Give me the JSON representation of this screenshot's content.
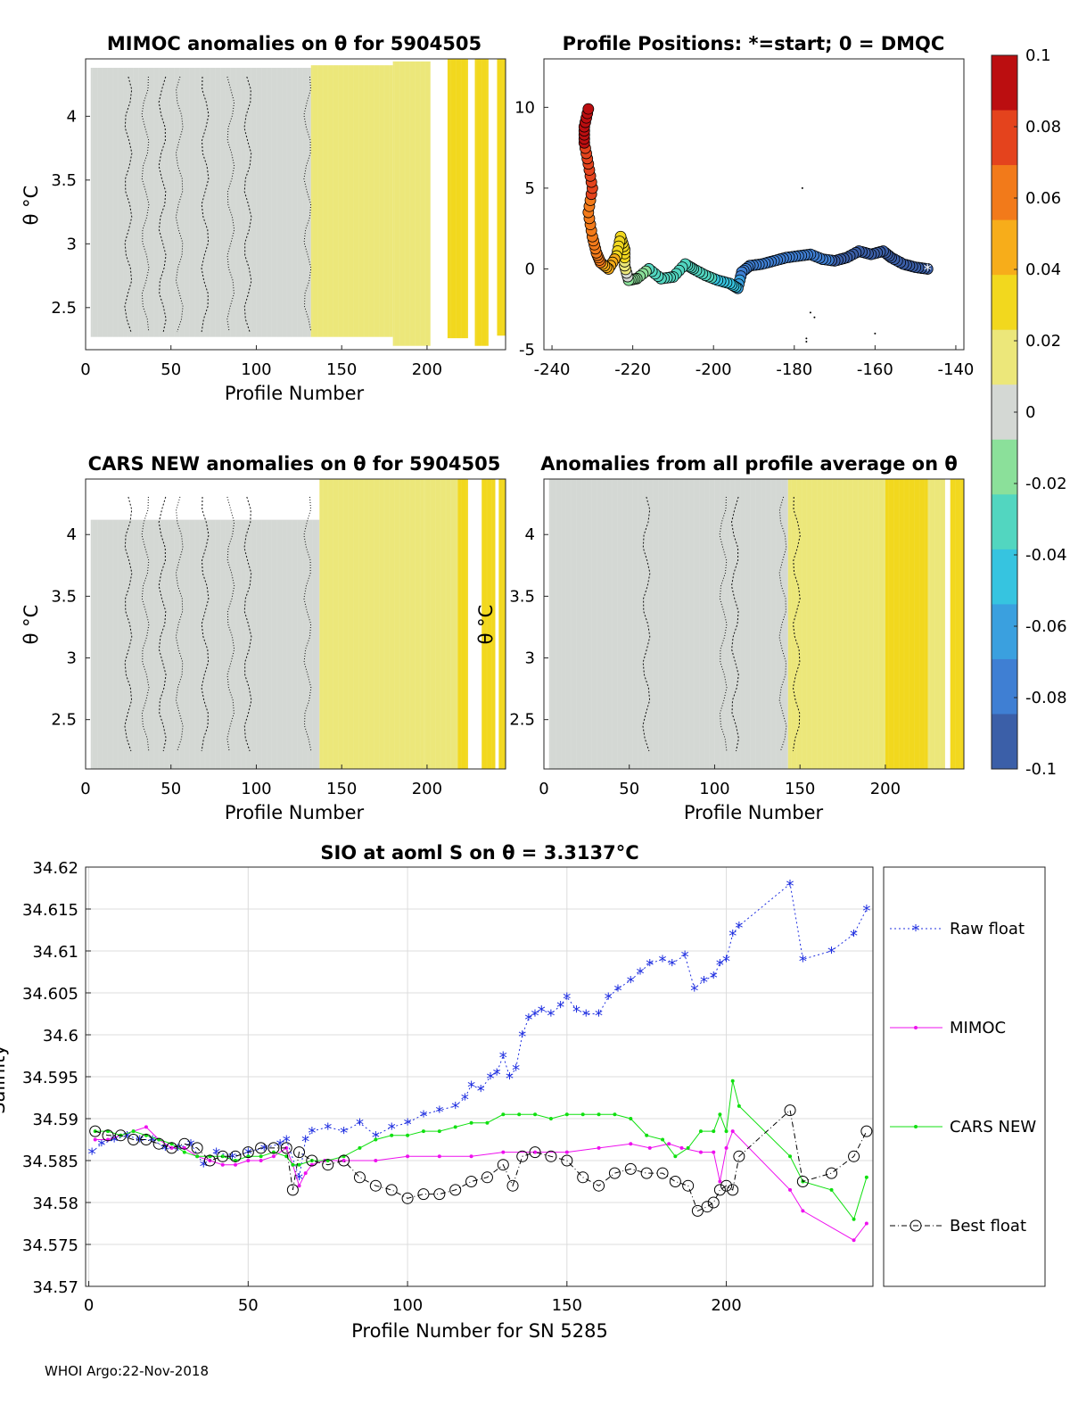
{
  "footer": "WHOI Argo:22-Nov-2018",
  "chart_data": [
    {
      "id": "mimoc",
      "type": "heatmap",
      "title": "MIMOC anomalies on θ  for 5904505",
      "xlabel": "Profile Number",
      "ylabel": "θ °C",
      "xlim": [
        0,
        246
      ],
      "ylim": [
        2.17,
        4.45
      ],
      "xticks": [
        "0",
        "50",
        "100",
        "150",
        "200"
      ],
      "yticks": [
        "2.5",
        "3",
        "3.5",
        "4"
      ],
      "regions": [
        {
          "x": [
            3,
            132
          ],
          "anomaly": 0.0
        },
        {
          "x": [
            132,
            180
          ],
          "anomaly": 0.018
        },
        {
          "x": [
            180,
            202
          ],
          "anomaly": 0.022
        },
        {
          "x": [
            212,
            224
          ],
          "anomaly": 0.035
        },
        {
          "x": [
            228,
            236
          ],
          "anomaly": 0.033
        },
        {
          "x": [
            241,
            246
          ],
          "anomaly": 0.03
        }
      ]
    },
    {
      "id": "positions",
      "type": "scatter",
      "title": "Profile Positions: *=start; 0 = DMQC",
      "xlim": [
        -242,
        -138
      ],
      "ylim": [
        -5,
        13
      ],
      "xticks": [
        "-240",
        "-220",
        "-200",
        "-180",
        "-160",
        "-140"
      ],
      "yticks": [
        "-5",
        "0",
        "5",
        "10"
      ],
      "start_marker": "*",
      "track": [
        {
          "lon": -147,
          "lat": 0.0,
          "anomaly": -0.1
        },
        {
          "lon": -150,
          "lat": 0.1,
          "anomaly": -0.095
        },
        {
          "lon": -153,
          "lat": 0.3,
          "anomaly": -0.092
        },
        {
          "lon": -156,
          "lat": 0.7,
          "anomaly": -0.09
        },
        {
          "lon": -158,
          "lat": 1.1,
          "anomaly": -0.088
        },
        {
          "lon": -161,
          "lat": 0.9,
          "anomaly": -0.087
        },
        {
          "lon": -164,
          "lat": 1.1,
          "anomaly": -0.086
        },
        {
          "lon": -167,
          "lat": 0.7,
          "anomaly": -0.085
        },
        {
          "lon": -170,
          "lat": 0.5,
          "anomaly": -0.085
        },
        {
          "lon": -173,
          "lat": 0.6,
          "anomaly": -0.084
        },
        {
          "lon": -176,
          "lat": 0.9,
          "anomaly": -0.083
        },
        {
          "lon": -179,
          "lat": 0.8,
          "anomaly": -0.083
        },
        {
          "lon": -182,
          "lat": 0.7,
          "anomaly": -0.082
        },
        {
          "lon": -185,
          "lat": 0.5,
          "anomaly": -0.082
        },
        {
          "lon": -188,
          "lat": 0.3,
          "anomaly": -0.081
        },
        {
          "lon": -191,
          "lat": 0.2,
          "anomaly": -0.08
        },
        {
          "lon": -193,
          "lat": -0.2,
          "anomaly": -0.075
        },
        {
          "lon": -194,
          "lat": -1.2,
          "anomaly": -0.055
        },
        {
          "lon": -196,
          "lat": -0.9,
          "anomaly": -0.045
        },
        {
          "lon": -199,
          "lat": -0.7,
          "anomaly": -0.04
        },
        {
          "lon": -202,
          "lat": -0.4,
          "anomaly": -0.035
        },
        {
          "lon": -205,
          "lat": 0.0,
          "anomaly": -0.033
        },
        {
          "lon": -207,
          "lat": 0.3,
          "anomaly": -0.03
        },
        {
          "lon": -210,
          "lat": -0.5,
          "anomaly": -0.028
        },
        {
          "lon": -213,
          "lat": -0.6,
          "anomaly": -0.026
        },
        {
          "lon": -216,
          "lat": 0.0,
          "anomaly": -0.024
        },
        {
          "lon": -219,
          "lat": -0.6,
          "anomaly": -0.02
        },
        {
          "lon": -221,
          "lat": -0.7,
          "anomaly": -0.012
        },
        {
          "lon": -222,
          "lat": 0.2,
          "anomaly": 0.02
        },
        {
          "lon": -222,
          "lat": 1.2,
          "anomaly": 0.03
        },
        {
          "lon": -223,
          "lat": 2.0,
          "anomaly": 0.034
        },
        {
          "lon": -224,
          "lat": 0.8,
          "anomaly": 0.038
        },
        {
          "lon": -226,
          "lat": 0.0,
          "anomaly": 0.05
        },
        {
          "lon": -228,
          "lat": 0.4,
          "anomaly": 0.055
        },
        {
          "lon": -229,
          "lat": 1.0,
          "anomaly": 0.058
        },
        {
          "lon": -230,
          "lat": 2.0,
          "anomaly": 0.065
        },
        {
          "lon": -231,
          "lat": 3.5,
          "anomaly": 0.068
        },
        {
          "lon": -230,
          "lat": 5.0,
          "anomaly": 0.07
        },
        {
          "lon": -231,
          "lat": 6.5,
          "anomaly": 0.075
        },
        {
          "lon": -232,
          "lat": 7.8,
          "anomaly": 0.085
        },
        {
          "lon": -232,
          "lat": 8.8,
          "anomaly": 0.09
        },
        {
          "lon": -231,
          "lat": 9.9,
          "anomaly": 0.1
        }
      ]
    },
    {
      "id": "cars",
      "type": "heatmap",
      "title": "CARS NEW anomalies on θ for 5904505",
      "xlabel": "Profile Number",
      "ylabel": "θ °C",
      "xlim": [
        0,
        246
      ],
      "ylim": [
        2.1,
        4.45
      ],
      "xticks": [
        "0",
        "50",
        "100",
        "150",
        "200"
      ],
      "yticks": [
        "2.5",
        "3",
        "3.5",
        "4"
      ],
      "regions": [
        {
          "x": [
            3,
            137
          ],
          "anomaly": 0.0
        },
        {
          "x": [
            137,
            198
          ],
          "anomaly": 0.018
        },
        {
          "x": [
            198,
            218
          ],
          "anomaly": 0.022
        },
        {
          "x": [
            218,
            224
          ],
          "anomaly": 0.03
        },
        {
          "x": [
            232,
            240
          ],
          "anomaly": 0.034
        },
        {
          "x": [
            242,
            246
          ],
          "anomaly": 0.03
        }
      ]
    },
    {
      "id": "average",
      "type": "heatmap",
      "title": "Anomalies from all profile average on θ",
      "xlabel": "Profile Number",
      "ylabel": "θ °C",
      "xlim": [
        0,
        246
      ],
      "ylim": [
        2.1,
        4.45
      ],
      "xticks": [
        "0",
        "50",
        "100",
        "150",
        "200"
      ],
      "yticks": [
        "2.5",
        "3",
        "3.5",
        "4"
      ],
      "regions": [
        {
          "x": [
            3,
            100
          ],
          "anomaly": 0.002
        },
        {
          "x": [
            100,
            143
          ],
          "anomaly": 0.006
        },
        {
          "x": [
            143,
            200
          ],
          "anomaly": 0.018
        },
        {
          "x": [
            200,
            225
          ],
          "anomaly": 0.026
        },
        {
          "x": [
            225,
            235
          ],
          "anomaly": 0.022
        },
        {
          "x": [
            238,
            246
          ],
          "anomaly": 0.03
        }
      ]
    },
    {
      "id": "colorbar",
      "type": "colorbar",
      "range": [
        -0.1,
        0.1
      ],
      "ticks": [
        "0.1",
        "0.08",
        "0.06",
        "0.04",
        "0.02",
        "0",
        "-0.02",
        "-0.04",
        "-0.06",
        "-0.08",
        "-0.1"
      ],
      "colors": [
        "#3b5fa8",
        "#3f7fd3",
        "#3aa0df",
        "#36c4e0",
        "#52d6c0",
        "#8be09a",
        "#d4d8d4",
        "#ece77a",
        "#f2d81e",
        "#f7ad1a",
        "#f27a1a",
        "#e4431d",
        "#bb0e10"
      ]
    },
    {
      "id": "salinity",
      "type": "line",
      "title": "SIO at aoml S on θ = 3.3137°C",
      "xlabel": "Profile Number for SN 5285",
      "ylabel": "Salinity",
      "xlim": [
        -1,
        246
      ],
      "ylim": [
        34.57,
        34.62
      ],
      "xticks": [
        "0",
        "50",
        "100",
        "150",
        "200"
      ],
      "yticks": [
        "34.57",
        "34.575",
        "34.58",
        "34.585",
        "34.59",
        "34.595",
        "34.6",
        "34.605",
        "34.61",
        "34.615",
        "34.62"
      ],
      "legend": "right",
      "series": [
        {
          "name": "Raw float",
          "color": "#1f2fe0",
          "marker": "star",
          "x": [
            1,
            4,
            8,
            12,
            16,
            20,
            24,
            28,
            32,
            36,
            40,
            45,
            50,
            55,
            60,
            62,
            66,
            68,
            70,
            75,
            80,
            85,
            90,
            95,
            100,
            105,
            110,
            115,
            118,
            120,
            123,
            126,
            128,
            130,
            132,
            134,
            136,
            138,
            140,
            142,
            145,
            148,
            150,
            153,
            156,
            160,
            163,
            166,
            170,
            173,
            176,
            180,
            183,
            187,
            190,
            193,
            196,
            198,
            200,
            202,
            204,
            220,
            224,
            233,
            240,
            244
          ],
          "y": [
            34.586,
            34.587,
            34.5875,
            34.588,
            34.5875,
            34.5875,
            34.5865,
            34.5865,
            34.587,
            34.5845,
            34.586,
            34.5855,
            34.586,
            34.5865,
            34.587,
            34.5875,
            34.583,
            34.5875,
            34.5885,
            34.589,
            34.5885,
            34.5895,
            34.588,
            34.589,
            34.5895,
            34.5905,
            34.591,
            34.5915,
            34.5925,
            34.594,
            34.5935,
            34.595,
            34.5955,
            34.5975,
            34.595,
            34.596,
            34.6,
            34.602,
            34.6025,
            34.603,
            34.6025,
            34.6035,
            34.6045,
            34.603,
            34.6025,
            34.6025,
            34.6045,
            34.6055,
            34.6065,
            34.6075,
            34.6085,
            34.609,
            34.6085,
            34.6095,
            34.6055,
            34.6065,
            34.607,
            34.6085,
            34.609,
            34.612,
            34.613,
            34.618,
            34.609,
            34.61,
            34.612,
            34.615
          ]
        },
        {
          "name": "MIMOC",
          "color": "#ee10ee",
          "marker": "dot",
          "x": [
            2,
            6,
            10,
            14,
            18,
            22,
            26,
            30,
            34,
            38,
            42,
            46,
            50,
            54,
            58,
            62,
            64,
            66,
            68,
            70,
            74,
            80,
            90,
            100,
            110,
            120,
            130,
            140,
            150,
            160,
            170,
            176,
            182,
            186,
            192,
            196,
            198,
            200,
            202,
            220,
            224,
            240,
            244
          ],
          "y": [
            34.5875,
            34.5875,
            34.588,
            34.5885,
            34.589,
            34.5875,
            34.5865,
            34.5865,
            34.5855,
            34.585,
            34.5845,
            34.5845,
            34.585,
            34.585,
            34.5855,
            34.5865,
            34.5845,
            34.582,
            34.5835,
            34.5845,
            34.585,
            34.585,
            34.585,
            34.5855,
            34.5855,
            34.5855,
            34.586,
            34.586,
            34.586,
            34.5865,
            34.587,
            34.5865,
            34.587,
            34.5865,
            34.586,
            34.586,
            34.5825,
            34.5865,
            34.5885,
            34.5815,
            34.579,
            34.5755,
            34.5775
          ]
        },
        {
          "name": "CARS NEW",
          "color": "#10e010",
          "marker": "dot",
          "x": [
            2,
            6,
            10,
            14,
            18,
            22,
            26,
            30,
            34,
            38,
            42,
            46,
            50,
            54,
            58,
            62,
            64,
            66,
            70,
            75,
            80,
            85,
            90,
            95,
            100,
            105,
            110,
            115,
            120,
            125,
            130,
            135,
            140,
            145,
            150,
            155,
            160,
            165,
            170,
            175,
            180,
            184,
            188,
            192,
            196,
            198,
            200,
            202,
            204,
            220,
            224,
            233,
            240,
            244
          ],
          "y": [
            34.5885,
            34.5885,
            34.588,
            34.5885,
            34.588,
            34.5875,
            34.587,
            34.586,
            34.5855,
            34.5855,
            34.5855,
            34.585,
            34.5855,
            34.5855,
            34.586,
            34.5855,
            34.5845,
            34.5845,
            34.585,
            34.585,
            34.5855,
            34.5865,
            34.5875,
            34.588,
            34.588,
            34.5885,
            34.5885,
            34.589,
            34.5895,
            34.5895,
            34.5905,
            34.5905,
            34.5905,
            34.59,
            34.5905,
            34.5905,
            34.5905,
            34.5905,
            34.59,
            34.588,
            34.5875,
            34.5855,
            34.5865,
            34.5885,
            34.5885,
            34.5905,
            34.5885,
            34.5945,
            34.5915,
            34.5855,
            34.5825,
            34.5815,
            34.578,
            34.583
          ]
        },
        {
          "name": "Best float",
          "color": "#000000",
          "marker": "circle",
          "x": [
            2,
            6,
            10,
            14,
            18,
            22,
            26,
            30,
            34,
            38,
            42,
            46,
            50,
            54,
            58,
            62,
            64,
            66,
            70,
            75,
            80,
            85,
            90,
            95,
            100,
            105,
            110,
            115,
            120,
            125,
            130,
            133,
            136,
            140,
            145,
            150,
            155,
            160,
            165,
            170,
            175,
            180,
            184,
            188,
            191,
            194,
            196,
            198,
            200,
            202,
            204,
            220,
            224,
            233,
            240,
            244
          ],
          "y": [
            34.5885,
            34.588,
            34.588,
            34.5875,
            34.5875,
            34.587,
            34.5865,
            34.587,
            34.5865,
            34.585,
            34.5855,
            34.5855,
            34.586,
            34.5865,
            34.5865,
            34.5865,
            34.5815,
            34.586,
            34.585,
            34.5845,
            34.585,
            34.583,
            34.582,
            34.5815,
            34.5805,
            34.581,
            34.581,
            34.5815,
            34.5825,
            34.583,
            34.5845,
            34.582,
            34.5855,
            34.586,
            34.5855,
            34.585,
            34.583,
            34.582,
            34.5835,
            34.584,
            34.5835,
            34.5835,
            34.5825,
            34.582,
            34.579,
            34.5795,
            34.58,
            34.5815,
            34.582,
            34.5815,
            34.5855,
            34.591,
            34.5825,
            34.5835,
            34.5855,
            34.5885
          ]
        }
      ]
    }
  ]
}
